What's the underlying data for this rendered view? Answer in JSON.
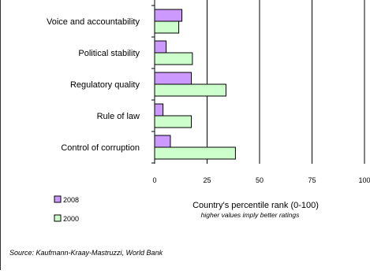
{
  "chart_data": {
    "type": "bar",
    "orientation": "horizontal",
    "categories": [
      "Voice and  accountability",
      "Political stability",
      "Regulatory quality",
      "Rule of law",
      "Control of corruption"
    ],
    "series": [
      {
        "name": "2008",
        "color": "#cc99ff",
        "values": [
          13,
          5.5,
          17.5,
          4,
          7.5
        ]
      },
      {
        "name": "2000",
        "color": "#ccffcc",
        "values": [
          11.5,
          18,
          34,
          17.5,
          38.5
        ]
      }
    ],
    "xlim": [
      0,
      100
    ],
    "xticks": [
      "0",
      "25",
      "50",
      "75",
      "100"
    ],
    "xlabel": "Country's percentile  rank (0-100)",
    "xlabel_note": "higher values imply better ratings",
    "grid": "vertical",
    "legend_position": "bottom-left",
    "source": "Source: Kaufmann-Kraay-Mastruzzi,  World Bank"
  }
}
